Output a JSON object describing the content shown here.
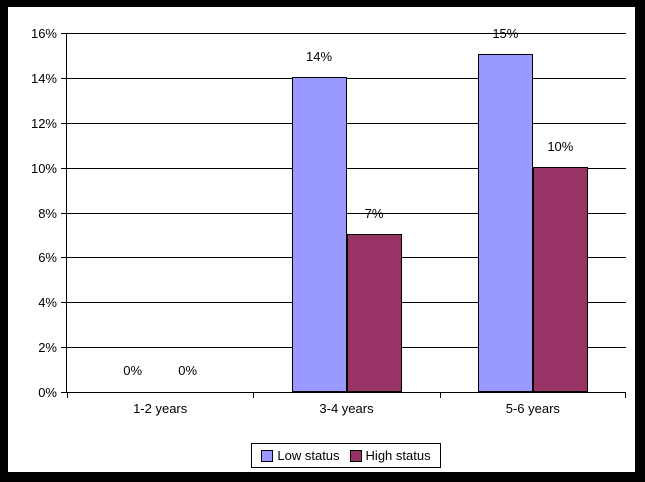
{
  "chart_data": {
    "type": "bar",
    "title": "",
    "categories": [
      "1-2 years",
      "3-4 years",
      "5-6 years"
    ],
    "series": [
      {
        "name": "Low status",
        "color": "#9999ff",
        "values": [
          0,
          14,
          15
        ],
        "labels": [
          "0%",
          "14%",
          "15%"
        ]
      },
      {
        "name": "High status",
        "color": "#993366",
        "values": [
          0,
          7,
          10
        ],
        "labels": [
          "0%",
          "7%",
          "10%"
        ]
      }
    ],
    "ylim": [
      0,
      16
    ],
    "ytick_step": 2,
    "ytick_labels": [
      "0%",
      "2%",
      "4%",
      "6%",
      "8%",
      "10%",
      "12%",
      "14%",
      "16%"
    ],
    "grid": true,
    "legend_position": "bottom"
  },
  "colors": {
    "frame_border": "#000000",
    "chart_background": "#ffffff",
    "axis": "#000000",
    "gridline": "#000000",
    "text": "#000000",
    "series_low_status": "#9999ff",
    "series_high_status": "#993366"
  }
}
